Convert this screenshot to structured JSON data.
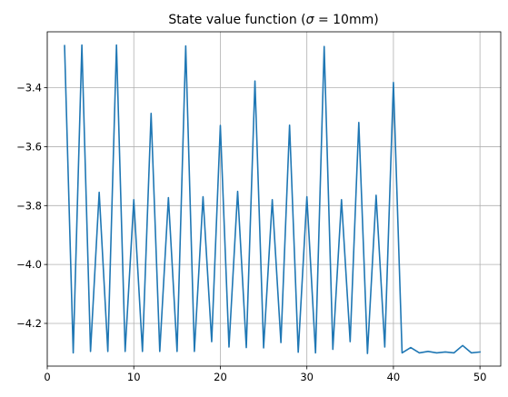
{
  "chart_data": {
    "type": "line",
    "title": "State value function (σ = 10mm)",
    "title_parts": {
      "prefix": "State value function (",
      "symbol": "σ",
      "suffix": " = 10mm)"
    },
    "xlabel": "",
    "ylabel": "",
    "xlim": [
      0,
      52.4
    ],
    "ylim": [
      -4.345,
      -3.21
    ],
    "xticks": [
      0,
      10,
      20,
      30,
      40,
      50
    ],
    "yticks": [
      -4.2,
      -4.0,
      -3.8,
      -3.6,
      -3.4
    ],
    "xtick_labels": [
      "0",
      "10",
      "20",
      "30",
      "40",
      "50"
    ],
    "ytick_labels": [
      "−4.2",
      "−4.0",
      "−3.8",
      "−3.6",
      "−3.4"
    ],
    "grid": true,
    "legend": "none",
    "line_color": "#1f77b4",
    "series": [
      {
        "x": [
          2,
          3,
          4,
          5,
          6,
          7,
          8,
          9,
          10,
          11,
          12,
          13,
          14,
          15,
          16,
          17,
          18,
          19,
          20,
          21,
          22,
          23,
          24,
          25,
          26,
          27,
          28,
          29,
          30,
          31,
          32,
          33,
          34,
          35,
          36,
          37,
          38,
          39,
          40,
          41,
          42,
          43,
          44,
          45,
          46,
          47,
          48,
          49,
          50
        ],
        "values": [
          -3.257,
          -4.3,
          -3.255,
          -4.295,
          -3.755,
          -4.295,
          -3.255,
          -4.295,
          -3.78,
          -4.295,
          -3.487,
          -4.295,
          -3.773,
          -4.295,
          -3.258,
          -4.295,
          -3.77,
          -4.262,
          -3.528,
          -4.28,
          -3.752,
          -4.282,
          -3.377,
          -4.283,
          -3.78,
          -4.265,
          -3.527,
          -4.298,
          -3.77,
          -4.3,
          -3.26,
          -4.288,
          -3.78,
          -4.262,
          -3.518,
          -4.302,
          -3.765,
          -4.28,
          -3.382,
          -4.3,
          -4.282,
          -4.3,
          -4.295,
          -4.3,
          -4.297,
          -4.3,
          -4.275,
          -4.3,
          -4.297
        ]
      }
    ]
  }
}
